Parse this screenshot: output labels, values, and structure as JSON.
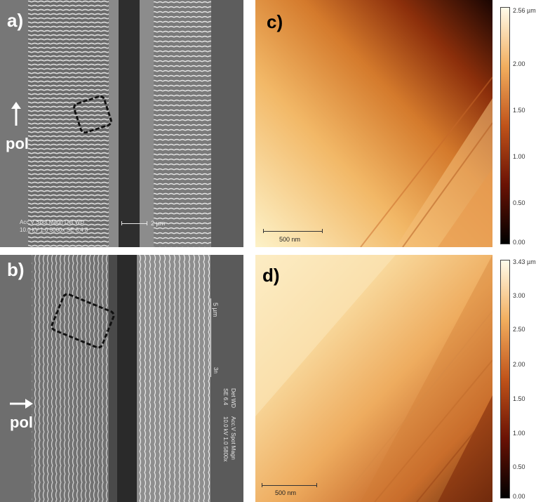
{
  "figure": {
    "panels": [
      {
        "letter": "a)"
      },
      {
        "letter": "b)"
      },
      {
        "letter": "c)"
      },
      {
        "letter": "d)"
      }
    ],
    "pol_a": "pol",
    "pol_b": "pol",
    "sem_a": {
      "line1": "Acc.V  Spot Magn   Det  WD",
      "line2": "10.0 kV  1.0  5000x  SE  6.4   8",
      "scale": "2 µm"
    },
    "sem_b": {
      "line1": "Acc.V  Spot Magn",
      "line2": "10.0 kV 1.0   5800x",
      "line3": "Det  WD",
      "line4": "SE   6.4",
      "scale": "5 µm",
      "scale_unit": "3n"
    },
    "afm_c": {
      "scale": "500 nm",
      "colorbar_max": "2.56 µm",
      "ticks": [
        "2.00",
        "1.50",
        "1.00",
        "0.50",
        "0.00"
      ]
    },
    "afm_d": {
      "scale": "500 nm",
      "colorbar_max": "3.43 µm",
      "ticks": [
        "3.00",
        "2.50",
        "2.00",
        "1.50",
        "1.00",
        "0.50",
        "0.00"
      ]
    }
  }
}
